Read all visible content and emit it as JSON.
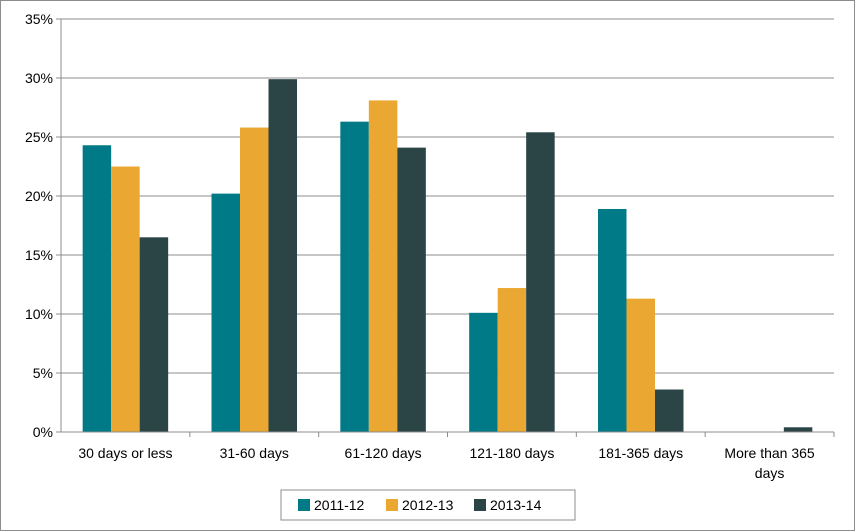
{
  "chart_data": {
    "type": "bar",
    "categories": [
      [
        "30 days or less"
      ],
      [
        "31-60 days"
      ],
      [
        "61-120 days"
      ],
      [
        "121-180 days"
      ],
      [
        "181-365 days"
      ],
      [
        "More than 365",
        "days"
      ]
    ],
    "series": [
      {
        "name": "2011-12",
        "color": "#007a87",
        "values": [
          24.3,
          20.2,
          26.3,
          10.1,
          18.9,
          0
        ]
      },
      {
        "name": "2012-13",
        "color": "#eaa832",
        "values": [
          22.5,
          25.8,
          28.1,
          12.2,
          11.3,
          0
        ]
      },
      {
        "name": "2013-14",
        "color": "#2b4446",
        "values": [
          16.5,
          29.9,
          24.1,
          25.4,
          3.6,
          0.4
        ]
      }
    ],
    "y_ticks": [
      "0%",
      "5%",
      "10%",
      "15%",
      "20%",
      "25%",
      "30%",
      "35%"
    ],
    "ylim": [
      0,
      35
    ],
    "y_unit": "%",
    "grid": true,
    "legend_position": "bottom"
  }
}
